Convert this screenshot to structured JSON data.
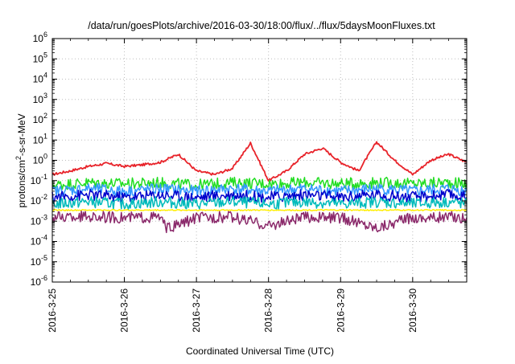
{
  "chart_data": {
    "type": "line",
    "title": "/data/run/goesPlots/archive/2016-03-30/18:00/flux/../flux/5daysMoonFluxes.txt",
    "xlabel": "Coordinated Universal Time (UTC)",
    "ylabel": "protons/cm²-s-sr-MeV",
    "x_scale": "time",
    "y_scale": "log",
    "xlim": [
      "2016-03-25T00:00",
      "2016-03-30T18:00"
    ],
    "ylim": [
      1e-06,
      1000000.0
    ],
    "x_ticks": [
      "2016-3-25",
      "2016-3-26",
      "2016-3-27",
      "2016-3-28",
      "2016-3-29",
      "2016-3-30"
    ],
    "y_ticks": [
      {
        "base": "10",
        "exp": "-6"
      },
      {
        "base": "10",
        "exp": "-5"
      },
      {
        "base": "10",
        "exp": "-4"
      },
      {
        "base": "10",
        "exp": "-3"
      },
      {
        "base": "10",
        "exp": "-2"
      },
      {
        "base": "10",
        "exp": "-1"
      },
      {
        "base": "10",
        "exp": "0"
      },
      {
        "base": "10",
        "exp": "1"
      },
      {
        "base": "10",
        "exp": "2"
      },
      {
        "base": "10",
        "exp": "3"
      },
      {
        "base": "10",
        "exp": "4"
      },
      {
        "base": "10",
        "exp": "5"
      },
      {
        "base": "10",
        "exp": "6"
      }
    ],
    "grid": true,
    "legend": "none",
    "series": [
      {
        "color": "#e8232a",
        "values": [
          [
            "2016-03-25T00:00",
            0.2
          ],
          [
            "2016-03-25T06:00",
            0.3
          ],
          [
            "2016-03-25T12:00",
            0.5
          ],
          [
            "2016-03-25T18:00",
            0.7
          ],
          [
            "2016-03-26T00:00",
            0.5
          ],
          [
            "2016-03-26T06:00",
            0.6
          ],
          [
            "2016-03-26T12:00",
            0.8
          ],
          [
            "2016-03-26T18:00",
            2.0
          ],
          [
            "2016-03-27T00:00",
            0.3
          ],
          [
            "2016-03-27T06:00",
            0.2
          ],
          [
            "2016-03-27T12:00",
            0.4
          ],
          [
            "2016-03-27T18:00",
            7.0
          ],
          [
            "2016-03-28T00:00",
            0.1
          ],
          [
            "2016-03-28T06:00",
            0.3
          ],
          [
            "2016-03-28T12:00",
            2.0
          ],
          [
            "2016-03-28T18:00",
            4.0
          ],
          [
            "2016-03-29T00:00",
            0.8
          ],
          [
            "2016-03-29T06:00",
            0.3
          ],
          [
            "2016-03-29T12:00",
            8.0
          ],
          [
            "2016-03-29T18:00",
            1.0
          ],
          [
            "2016-03-30T00:00",
            0.2
          ],
          [
            "2016-03-30T06:00",
            1.0
          ],
          [
            "2016-03-30T12:00",
            2.0
          ],
          [
            "2016-03-30T18:00",
            0.8
          ]
        ]
      },
      {
        "color": "#22dd22",
        "values": [
          [
            "2016-03-25T00:00",
            0.06
          ],
          [
            "2016-03-25T12:00",
            0.08
          ],
          [
            "2016-03-26T00:00",
            0.07
          ],
          [
            "2016-03-26T12:00",
            0.08
          ],
          [
            "2016-03-27T00:00",
            0.06
          ],
          [
            "2016-03-27T12:00",
            0.08
          ],
          [
            "2016-03-28T00:00",
            0.07
          ],
          [
            "2016-03-28T12:00",
            0.08
          ],
          [
            "2016-03-29T00:00",
            0.07
          ],
          [
            "2016-03-29T12:00",
            0.08
          ],
          [
            "2016-03-30T00:00",
            0.07
          ],
          [
            "2016-03-30T12:00",
            0.08
          ],
          [
            "2016-03-30T18:00",
            0.07
          ]
        ]
      },
      {
        "color": "#3399ff",
        "values": [
          [
            "2016-03-25T00:00",
            0.03
          ],
          [
            "2016-03-25T12:00",
            0.04
          ],
          [
            "2016-03-26T00:00",
            0.03
          ],
          [
            "2016-03-26T12:00",
            0.04
          ],
          [
            "2016-03-27T00:00",
            0.03
          ],
          [
            "2016-03-27T12:00",
            0.04
          ],
          [
            "2016-03-28T00:00",
            0.03
          ],
          [
            "2016-03-28T12:00",
            0.04
          ],
          [
            "2016-03-29T00:00",
            0.03
          ],
          [
            "2016-03-29T12:00",
            0.04
          ],
          [
            "2016-03-30T00:00",
            0.03
          ],
          [
            "2016-03-30T12:00",
            0.04
          ],
          [
            "2016-03-30T18:00",
            0.03
          ]
        ]
      },
      {
        "color": "#0000cc",
        "values": [
          [
            "2016-03-25T00:00",
            0.015
          ],
          [
            "2016-03-25T12:00",
            0.02
          ],
          [
            "2016-03-26T00:00",
            0.015
          ],
          [
            "2016-03-26T12:00",
            0.02
          ],
          [
            "2016-03-27T00:00",
            0.015
          ],
          [
            "2016-03-27T12:00",
            0.02
          ],
          [
            "2016-03-28T00:00",
            0.015
          ],
          [
            "2016-03-28T12:00",
            0.02
          ],
          [
            "2016-03-29T00:00",
            0.015
          ],
          [
            "2016-03-29T12:00",
            0.02
          ],
          [
            "2016-03-30T00:00",
            0.015
          ],
          [
            "2016-03-30T12:00",
            0.02
          ],
          [
            "2016-03-30T18:00",
            0.015
          ]
        ]
      },
      {
        "color": "#00bbbb",
        "values": [
          [
            "2016-03-25T00:00",
            0.007
          ],
          [
            "2016-03-25T12:00",
            0.009
          ],
          [
            "2016-03-26T00:00",
            0.007
          ],
          [
            "2016-03-26T12:00",
            0.009
          ],
          [
            "2016-03-27T00:00",
            0.007
          ],
          [
            "2016-03-27T12:00",
            0.009
          ],
          [
            "2016-03-28T00:00",
            0.007
          ],
          [
            "2016-03-28T12:00",
            0.009
          ],
          [
            "2016-03-29T00:00",
            0.007
          ],
          [
            "2016-03-29T12:00",
            0.009
          ],
          [
            "2016-03-30T00:00",
            0.007
          ],
          [
            "2016-03-30T12:00",
            0.009
          ],
          [
            "2016-03-30T18:00",
            0.007
          ]
        ]
      },
      {
        "color": "#ffee00",
        "values": [
          [
            "2016-03-25T00:00",
            0.0035
          ],
          [
            "2016-03-26T00:00",
            0.0035
          ],
          [
            "2016-03-27T00:00",
            0.0035
          ],
          [
            "2016-03-28T00:00",
            0.0035
          ],
          [
            "2016-03-29T00:00",
            0.0035
          ],
          [
            "2016-03-30T00:00",
            0.0035
          ],
          [
            "2016-03-30T18:00",
            0.0035
          ]
        ]
      },
      {
        "color": "#8b2a6b",
        "values": [
          [
            "2016-03-25T00:00",
            0.0015
          ],
          [
            "2016-03-25T12:00",
            0.0017
          ],
          [
            "2016-03-26T00:00",
            0.0015
          ],
          [
            "2016-03-26T12:00",
            0.0016
          ],
          [
            "2016-03-26T14:00",
            0.0004
          ],
          [
            "2016-03-27T00:00",
            0.0015
          ],
          [
            "2016-03-27T12:00",
            0.0016
          ],
          [
            "2016-03-28T00:00",
            0.0006
          ],
          [
            "2016-03-28T12:00",
            0.0016
          ],
          [
            "2016-03-29T00:00",
            0.0015
          ],
          [
            "2016-03-29T12:00",
            0.0005
          ],
          [
            "2016-03-30T00:00",
            0.0015
          ],
          [
            "2016-03-30T12:00",
            0.0016
          ],
          [
            "2016-03-30T18:00",
            0.0015
          ]
        ]
      }
    ]
  }
}
